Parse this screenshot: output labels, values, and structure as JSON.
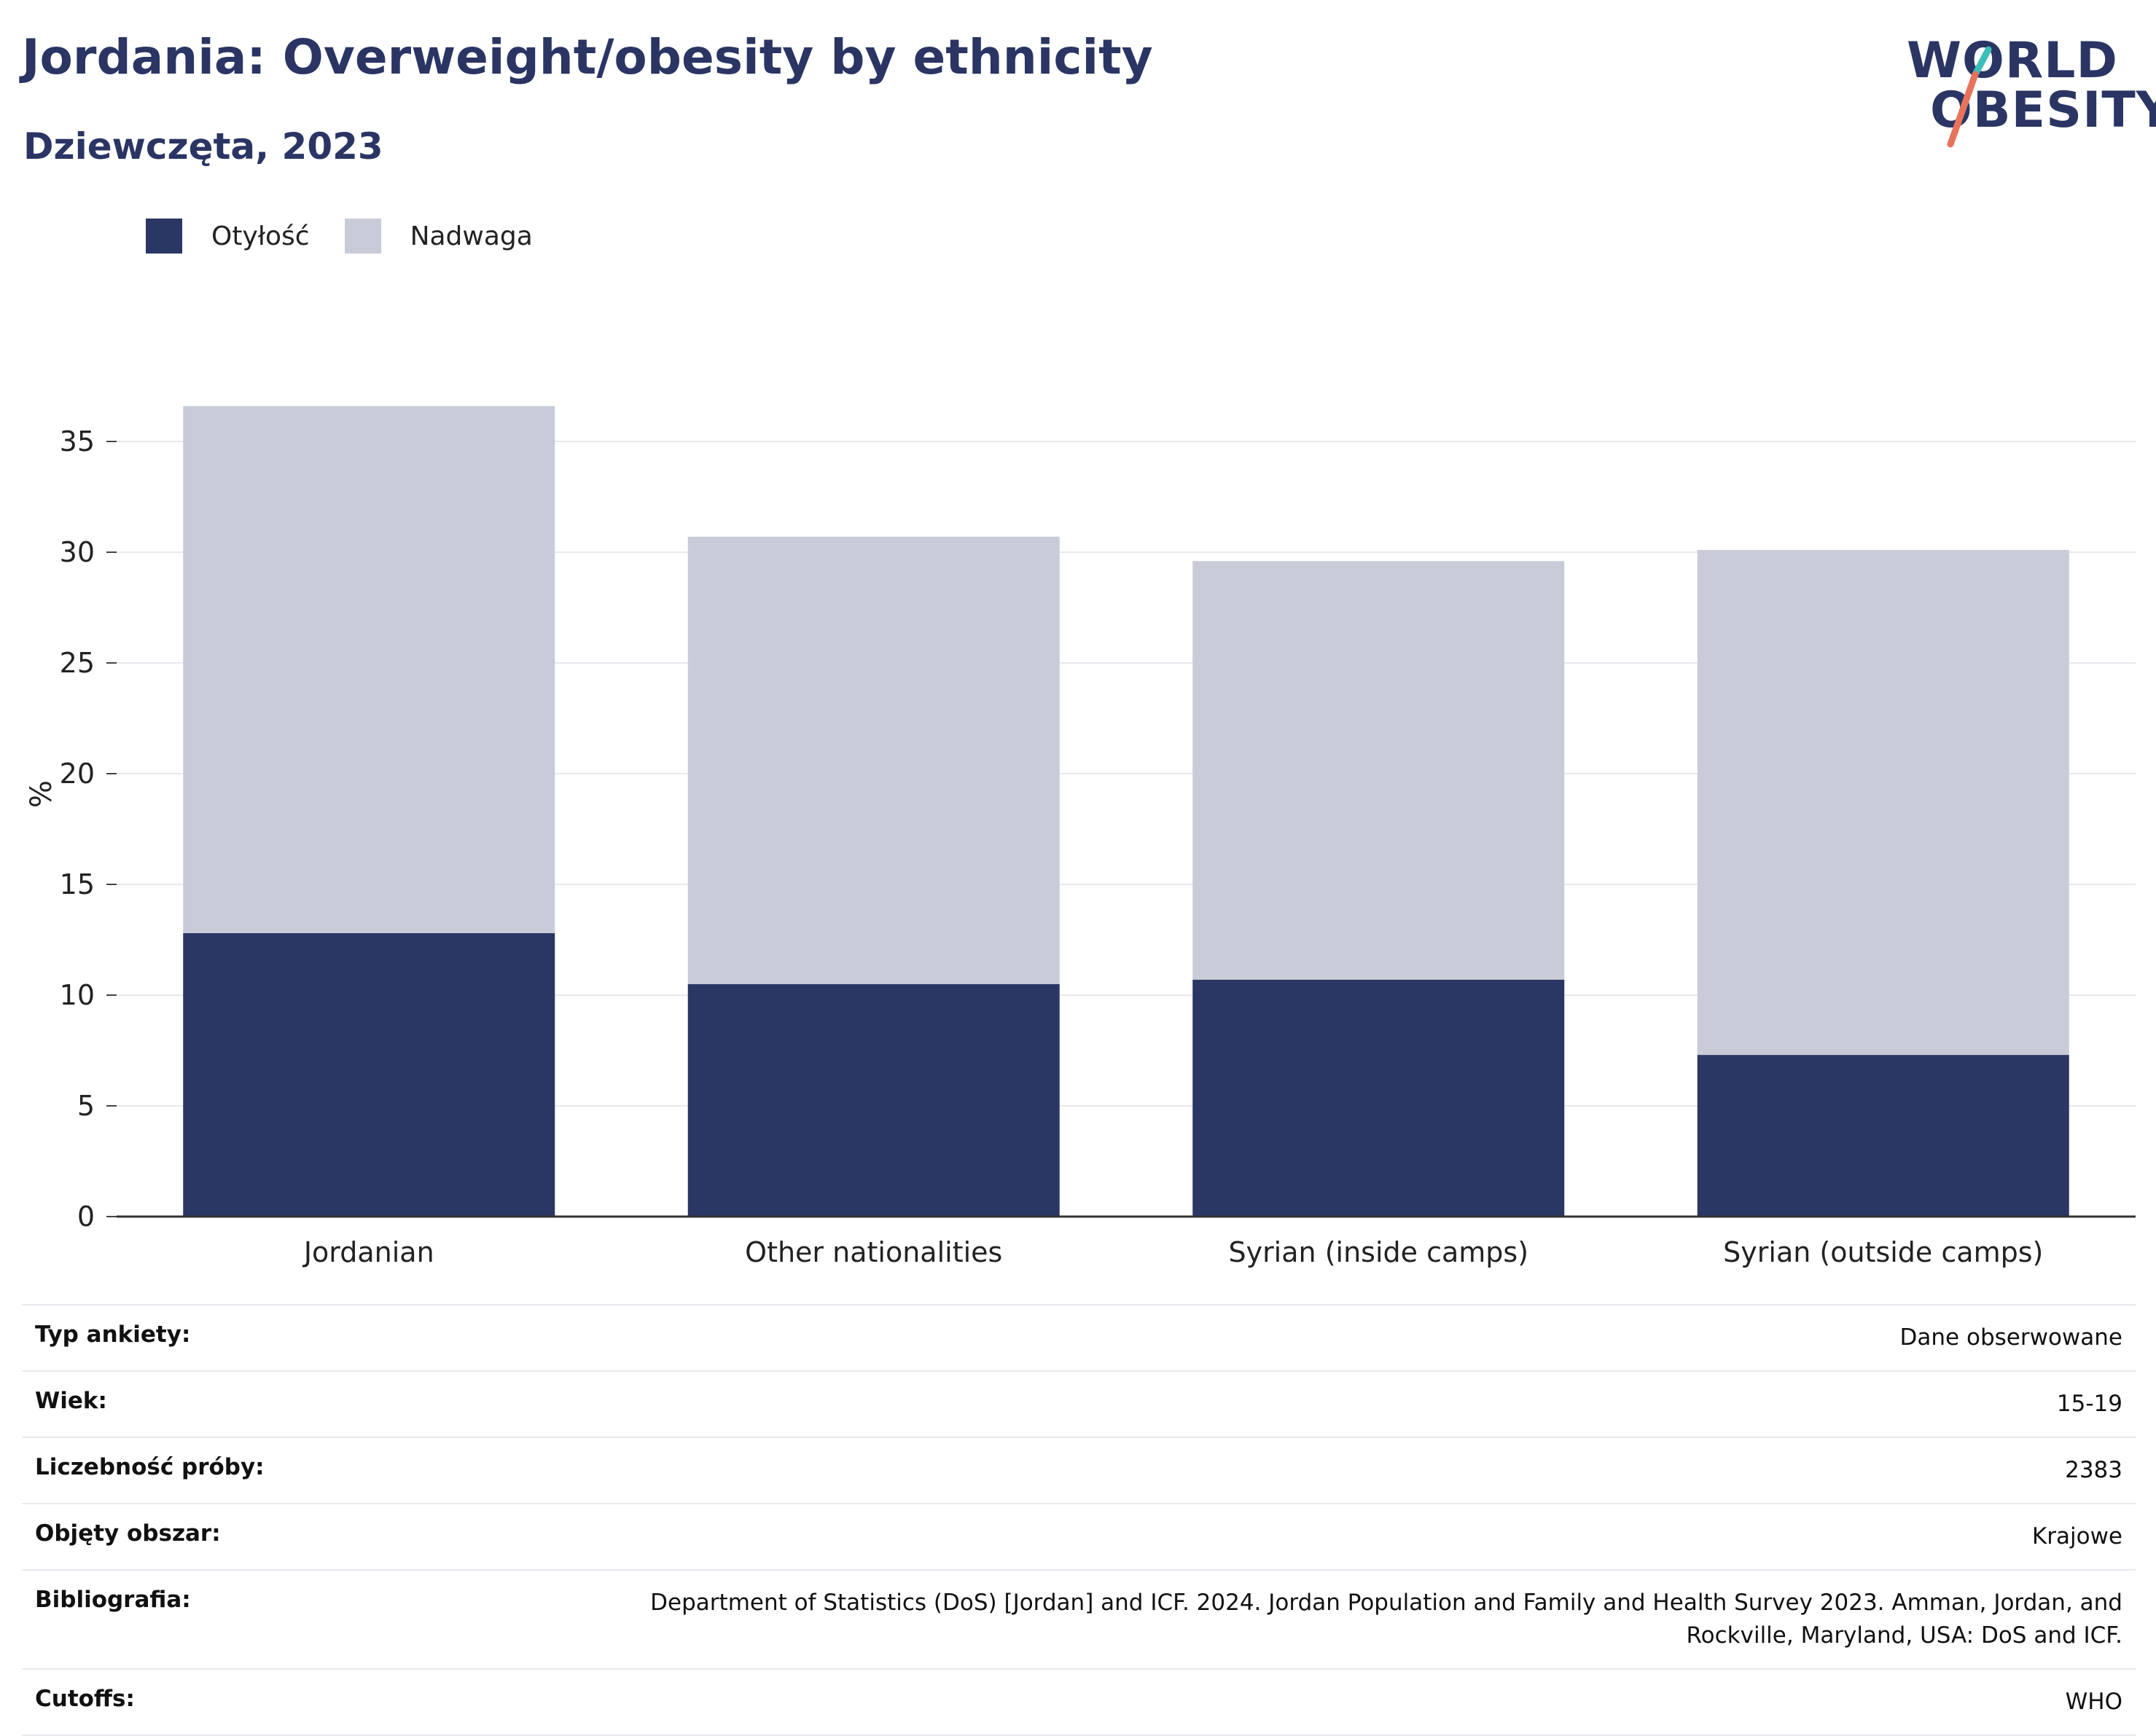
{
  "header": {
    "title": "Jordania: Overweight/obesity by ethnicity",
    "subtitle": "Dziewczęta, 2023"
  },
  "logo": {
    "line1": "WORLD",
    "line2": "OBESITY",
    "accent_colors": [
      "#3bbfb8",
      "#e8735a"
    ]
  },
  "legend": [
    {
      "label": "Otyłość",
      "color": "#2a3664"
    },
    {
      "label": "Nadwaga",
      "color": "#c9ccd8"
    }
  ],
  "chart_data": {
    "type": "bar",
    "stacked": true,
    "categories": [
      "Jordanian",
      "Other nationalities",
      "Syrian (inside camps)",
      "Syrian (outside camps)"
    ],
    "series": [
      {
        "name": "Otyłość",
        "color": "#2a3664",
        "values": [
          12.8,
          10.5,
          10.7,
          7.3
        ]
      },
      {
        "name": "Nadwaga",
        "color": "#c9ccd8",
        "values": [
          23.8,
          20.2,
          18.9,
          22.8
        ]
      }
    ],
    "ylabel": "%",
    "ylim": [
      0,
      37
    ],
    "yticks": [
      0,
      5,
      10,
      15,
      20,
      25,
      30,
      35
    ],
    "grid": true,
    "legend_position": "top-left"
  },
  "meta": [
    {
      "key": "Typ ankiety:",
      "value": "Dane obserwowane"
    },
    {
      "key": "Wiek:",
      "value": "15-19"
    },
    {
      "key": "Liczebność próby:",
      "value": "2383"
    },
    {
      "key": "Objęty obszar:",
      "value": "Krajowe"
    },
    {
      "key": "Bibliografia:",
      "value": "Department of Statistics (DoS) [Jordan] and ICF. 2024. Jordan Population and Family and Health Survey 2023. Amman, Jordan, and Rockville, Maryland, USA: DoS and ICF."
    },
    {
      "key": "Cutoffs:",
      "value": "WHO"
    }
  ]
}
